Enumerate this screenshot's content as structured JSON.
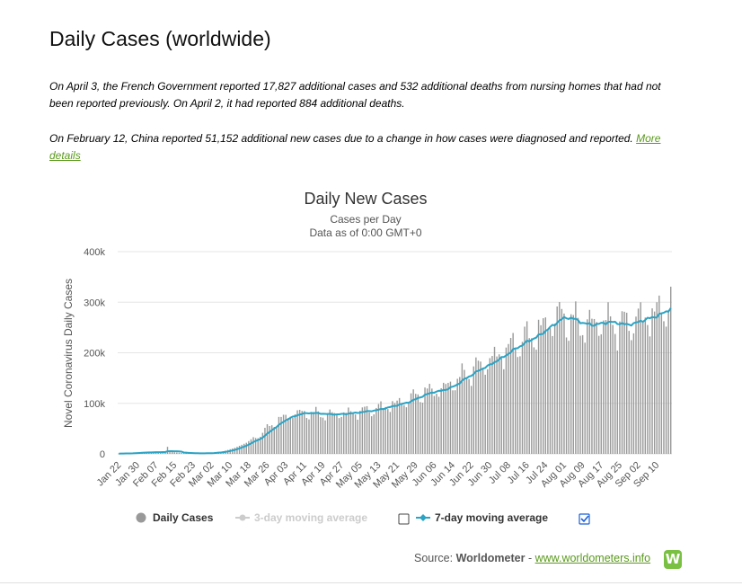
{
  "page": {
    "title": "Daily Cases (worldwide)",
    "note1": "On April 3, the French Government reported 17,827 additional cases and 532 additional deaths from nursing homes that had not been reported previously. On April 2, it had reported 884 additional deaths.",
    "note2": "On February 12, China reported 51,152 additional new cases due to a change in how cases were diagnosed and reported.",
    "note2_link": "More details"
  },
  "source": {
    "prefix": "Source:",
    "name": "Worldometer",
    "separator": "-",
    "link": "www.worldometers.info",
    "logo_letter": "W"
  },
  "colors": {
    "bar": "#999999",
    "ma7": "#2aa3c4",
    "ma3": "#cccccc",
    "link": "#5a9a1c"
  },
  "chart_data": {
    "type": "bar",
    "title": "Daily New Cases",
    "subtitle1": "Cases per Day",
    "subtitle2": "Data as of 0:00 GMT+0",
    "ylabel": "Novel Coronavirus Daily Cases",
    "xlabel": "",
    "ylim": [
      0,
      400000
    ],
    "yticks": [
      "0",
      "100k",
      "200k",
      "300k",
      "400k"
    ],
    "ytick_values": [
      0,
      100000,
      200000,
      300000,
      400000
    ],
    "start_date": "Jan 22",
    "num_days": 239,
    "xtick_labels": [
      "Jan 22",
      "Jan 30",
      "Feb 07",
      "Feb 15",
      "Feb 23",
      "Mar 02",
      "Mar 10",
      "Mar 18",
      "Mar 26",
      "Apr 03",
      "Apr 11",
      "Apr 19",
      "Apr 27",
      "May 05",
      "May 13",
      "May 21",
      "May 29",
      "Jun 06",
      "Jun 14",
      "Jun 22",
      "Jun 30",
      "Jul 08",
      "Jul 16",
      "Jul 24",
      "Aug 01",
      "Aug 09",
      "Aug 17",
      "Aug 25",
      "Sep 02",
      "Sep 10"
    ],
    "xtick_day_index": [
      0,
      8,
      16,
      24,
      32,
      40,
      48,
      56,
      64,
      72,
      80,
      88,
      96,
      104,
      112,
      120,
      128,
      136,
      144,
      152,
      160,
      168,
      176,
      184,
      192,
      200,
      208,
      216,
      224,
      232
    ],
    "daily_cases_anchors": [
      [
        0,
        500
      ],
      [
        5,
        1500
      ],
      [
        10,
        3000
      ],
      [
        16,
        3500
      ],
      [
        20,
        4000
      ],
      [
        21,
        14000
      ],
      [
        22,
        4000
      ],
      [
        28,
        1500
      ],
      [
        35,
        1000
      ],
      [
        40,
        2000
      ],
      [
        45,
        5000
      ],
      [
        50,
        12000
      ],
      [
        55,
        22000
      ],
      [
        60,
        35000
      ],
      [
        65,
        55000
      ],
      [
        70,
        70000
      ],
      [
        75,
        80000
      ],
      [
        80,
        82000
      ],
      [
        90,
        78000
      ],
      [
        100,
        82000
      ],
      [
        110,
        88000
      ],
      [
        115,
        95000
      ],
      [
        120,
        100000
      ],
      [
        125,
        108000
      ],
      [
        130,
        120000
      ],
      [
        140,
        130000
      ],
      [
        150,
        160000
      ],
      [
        160,
        185000
      ],
      [
        170,
        215000
      ],
      [
        180,
        240000
      ],
      [
        185,
        260000
      ],
      [
        190,
        275000
      ],
      [
        195,
        265000
      ],
      [
        200,
        255000
      ],
      [
        210,
        265000
      ],
      [
        215,
        255000
      ],
      [
        220,
        260000
      ],
      [
        225,
        270000
      ],
      [
        230,
        275000
      ],
      [
        235,
        290000
      ],
      [
        238,
        300000
      ]
    ],
    "series": [
      {
        "name": "Daily Cases",
        "legend_symbol": "dot",
        "visible": true
      },
      {
        "name": "3-day moving average",
        "legend_symbol": "line-dot",
        "visible": false
      },
      {
        "name": "7-day moving average",
        "legend_symbol": "line-diamond",
        "visible": true
      }
    ],
    "legend_position": "bottom-center"
  }
}
